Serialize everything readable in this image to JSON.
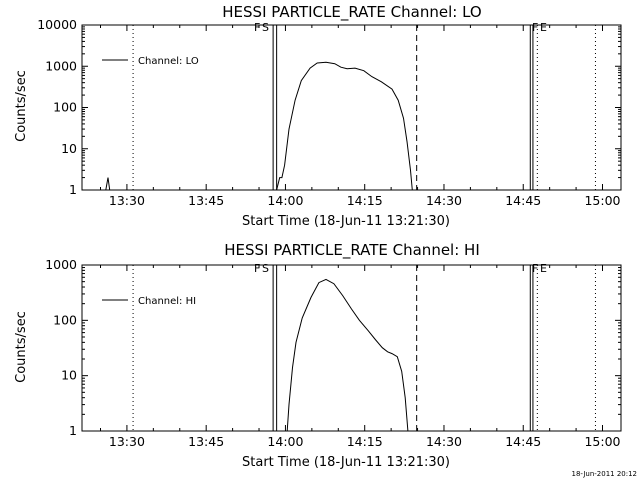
{
  "chart_data": [
    {
      "type": "line",
      "title": "HESSI PARTICLE_RATE Channel: LO",
      "xlabel": "Start Time (18-Jun-11 13:21:30)",
      "ylabel": "Counts/sec",
      "yscale": "log",
      "ylim": [
        1,
        10000
      ],
      "xlim": [
        "13:21:30",
        "15:03:30"
      ],
      "x_ticks": [
        "13:30",
        "13:45",
        "14:00",
        "14:15",
        "14:30",
        "14:45",
        "15:00"
      ],
      "y_ticks": [
        "1",
        "10",
        "100",
        "1000",
        "10000"
      ],
      "legend": {
        "entries": [
          "Channel: LO"
        ],
        "position": "top-left"
      },
      "markers": {
        "start_label": "F",
        "start_flare_label": "S",
        "end_label": "F",
        "end_flare_label": "E"
      },
      "series": [
        {
          "name": "Channel: LO",
          "points": [
            [
              "13:26:00",
              1
            ],
            [
              "13:26:25",
              2
            ],
            [
              "13:26:45",
              1
            ],
            [
              "13:58:20",
              1
            ],
            [
              "13:58:55",
              2
            ],
            [
              "13:59:20",
              2
            ],
            [
              "13:59:50",
              4
            ],
            [
              "14:00:40",
              30
            ],
            [
              "14:01:50",
              150
            ],
            [
              "14:03:00",
              450
            ],
            [
              "14:04:40",
              900
            ],
            [
              "14:06:00",
              1200
            ],
            [
              "14:07:40",
              1250
            ],
            [
              "14:09:20",
              1150
            ],
            [
              "14:10:30",
              950
            ],
            [
              "14:11:40",
              870
            ],
            [
              "14:13:10",
              900
            ],
            [
              "14:14:50",
              780
            ],
            [
              "14:16:20",
              560
            ],
            [
              "14:18:10",
              420
            ],
            [
              "14:20:10",
              280
            ],
            [
              "14:21:20",
              150
            ],
            [
              "14:22:20",
              55
            ],
            [
              "14:23:00",
              15
            ],
            [
              "14:23:40",
              3
            ],
            [
              "14:24:00",
              1
            ]
          ]
        }
      ],
      "vlines": [
        {
          "x": "13:31:10",
          "style": "dotted"
        },
        {
          "x": "13:57:40",
          "style": "solid"
        },
        {
          "x": "13:58:20",
          "style": "solid"
        },
        {
          "x": "14:24:50",
          "style": "dashed"
        },
        {
          "x": "14:46:20",
          "style": "solid"
        },
        {
          "x": "14:46:50",
          "style": "solid"
        },
        {
          "x": "14:47:40",
          "style": "dotted"
        },
        {
          "x": "14:58:40",
          "style": "dotted"
        }
      ]
    },
    {
      "type": "line",
      "title": "HESSI PARTICLE_RATE Channel: HI",
      "xlabel": "Start Time (18-Jun-11 13:21:30)",
      "ylabel": "Counts/sec",
      "yscale": "log",
      "ylim": [
        1,
        1000
      ],
      "xlim": [
        "13:21:30",
        "15:03:30"
      ],
      "x_ticks": [
        "13:30",
        "13:45",
        "14:00",
        "14:15",
        "14:30",
        "14:45",
        "15:00"
      ],
      "y_ticks": [
        "1",
        "10",
        "100",
        "1000"
      ],
      "legend": {
        "entries": [
          "Channel: HI"
        ],
        "position": "top-left"
      },
      "markers": {
        "start_label": "F",
        "start_flare_label": "S",
        "end_label": "F",
        "end_flare_label": "E"
      },
      "series": [
        {
          "name": "Channel: HI",
          "points": [
            [
              "14:00:20",
              1
            ],
            [
              "14:00:40",
              3
            ],
            [
              "14:01:20",
              14
            ],
            [
              "14:02:00",
              40
            ],
            [
              "14:03:10",
              110
            ],
            [
              "14:04:50",
              260
            ],
            [
              "14:06:20",
              480
            ],
            [
              "14:07:40",
              550
            ],
            [
              "14:09:10",
              460
            ],
            [
              "14:10:50",
              280
            ],
            [
              "14:12:30",
              160
            ],
            [
              "14:14:00",
              100
            ],
            [
              "14:15:40",
              65
            ],
            [
              "14:17:00",
              45
            ],
            [
              "14:18:20",
              32
            ],
            [
              "14:19:20",
              27
            ],
            [
              "14:20:10",
              25
            ],
            [
              "14:21:10",
              22
            ],
            [
              "14:22:00",
              12
            ],
            [
              "14:22:40",
              4
            ],
            [
              "14:23:10",
              1
            ]
          ]
        }
      ],
      "vlines": [
        {
          "x": "13:31:10",
          "style": "dotted"
        },
        {
          "x": "13:57:40",
          "style": "solid"
        },
        {
          "x": "13:58:20",
          "style": "solid"
        },
        {
          "x": "14:24:50",
          "style": "dashed"
        },
        {
          "x": "14:46:20",
          "style": "solid"
        },
        {
          "x": "14:46:50",
          "style": "solid"
        },
        {
          "x": "14:47:40",
          "style": "dotted"
        },
        {
          "x": "14:58:40",
          "style": "dotted"
        }
      ]
    }
  ],
  "footer": {
    "timestamp": "18-Jun-2011 20:12"
  }
}
